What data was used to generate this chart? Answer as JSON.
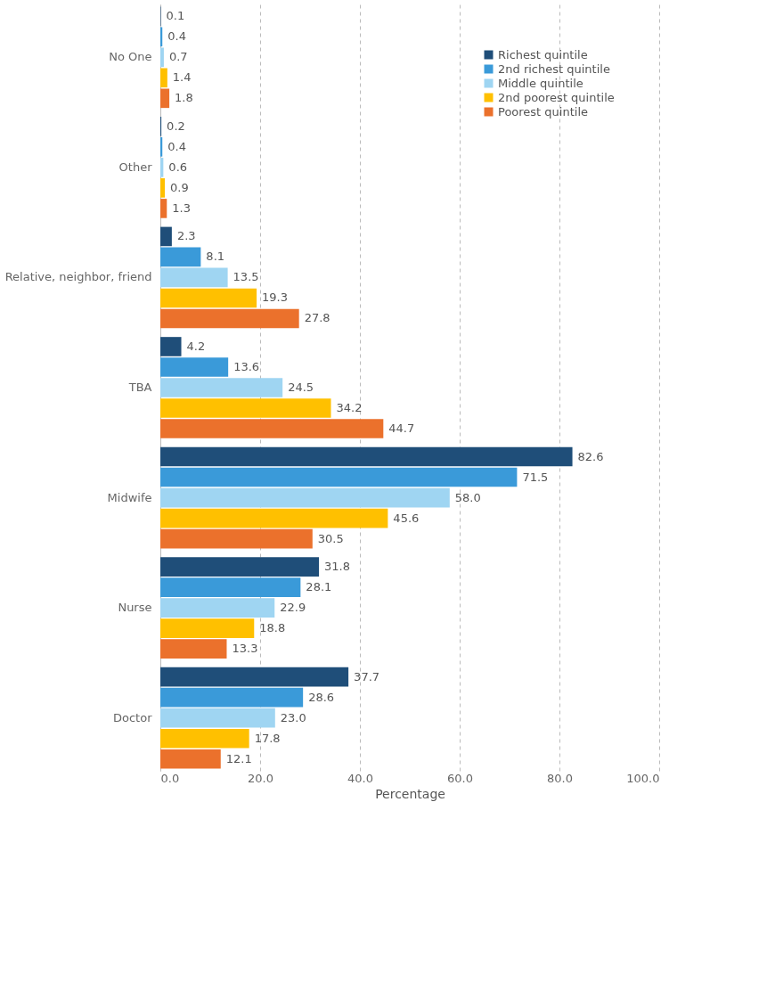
{
  "chart_data": {
    "type": "bar",
    "orientation": "horizontal",
    "xlabel": "Percentage",
    "categories": [
      "No One",
      "Other",
      "Relative, neighbor, friend",
      "TBA",
      "Midwife",
      "Nurse",
      "Doctor"
    ],
    "series": [
      {
        "name": "Richest quintile",
        "color": "#1f4e79",
        "values": [
          0.1,
          0.2,
          2.3,
          4.2,
          82.6,
          31.8,
          37.7
        ],
        "value_labels": [
          "0.1",
          "0.2",
          "2.3",
          "4.2",
          "82.6",
          "31.8",
          "37.7"
        ]
      },
      {
        "name": "2nd richest quintile",
        "color": "#3a9ad9",
        "values": [
          0.4,
          0.4,
          8.1,
          13.6,
          71.5,
          28.1,
          28.6
        ],
        "value_labels": [
          "0.4",
          "0.4",
          "8.1",
          "13.6",
          "71.5",
          "28.1",
          "28.6"
        ]
      },
      {
        "name": "Middle quintile",
        "color": "#9fd5f2",
        "values": [
          0.7,
          0.6,
          13.5,
          24.5,
          58.0,
          22.9,
          23.0
        ],
        "value_labels": [
          "0.7",
          "0.6",
          "13.5",
          "24.5",
          "58.0",
          "22.9",
          "23.0"
        ]
      },
      {
        "name": "2nd poorest quintile",
        "color": "#ffc000",
        "values": [
          1.4,
          0.9,
          19.3,
          34.2,
          45.6,
          18.8,
          17.8
        ],
        "value_labels": [
          "1.4",
          "0.9",
          "19.3",
          "34.2",
          "45.6",
          "18.8",
          "17.8"
        ]
      },
      {
        "name": "Poorest quintile",
        "color": "#eb712c",
        "values": [
          1.8,
          1.3,
          27.8,
          44.7,
          30.5,
          13.3,
          12.1
        ],
        "value_labels": [
          "1.8",
          "1.3",
          "27.8",
          "44.7",
          "30.5",
          "13.3",
          "12.1"
        ]
      }
    ],
    "xlim": [
      0,
      100
    ],
    "xticks": [
      {
        "value": 0,
        "label": "0.0"
      },
      {
        "value": 20,
        "label": "20.0"
      },
      {
        "value": 40,
        "label": "40.0"
      },
      {
        "value": 60,
        "label": "60.0"
      },
      {
        "value": 80,
        "label": "80.0"
      },
      {
        "value": 100,
        "label": "100.0"
      }
    ],
    "grid": "x",
    "legend": "top right"
  }
}
